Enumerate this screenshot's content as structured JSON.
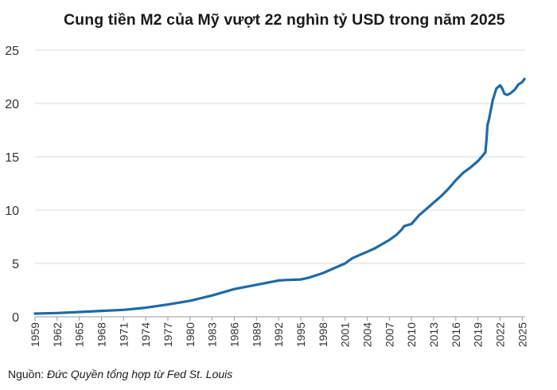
{
  "chart_data": {
    "type": "line",
    "title": "Cung tiền M2 của Mỹ vượt 22 nghìn tỷ USD trong năm 2025",
    "xlabel": "",
    "ylabel": "",
    "ylim": [
      0,
      25
    ],
    "xlim": [
      1959,
      2025.4
    ],
    "y_ticks": [
      "0",
      "5",
      "10",
      "15",
      "20",
      "25"
    ],
    "x_ticks": [
      "1959",
      "1962",
      "1965",
      "1968",
      "1971",
      "1974",
      "1977",
      "1980",
      "1983",
      "1986",
      "1989",
      "1992",
      "1995",
      "1998",
      "2001",
      "2004",
      "2007",
      "2010",
      "2013",
      "2016",
      "2019",
      "2022",
      "2025"
    ],
    "grid": "horizontal",
    "legend": "none",
    "line_color": "#1f6aa5",
    "series": [
      {
        "x": [
          1959,
          1962,
          1965,
          1968,
          1971,
          1974,
          1977,
          1980,
          1983,
          1986,
          1989,
          1992,
          1993,
          1995,
          1996,
          1998,
          2000,
          2001,
          2002,
          2003,
          2004,
          2005,
          2006,
          2007,
          2008,
          2008.7,
          2009,
          2010,
          2011,
          2012,
          2013,
          2014,
          2015,
          2016,
          2017,
          2018,
          2019,
          2020,
          2020.15,
          2020.3,
          2020.5,
          2021,
          2021.5,
          2022,
          2022.3,
          2022.6,
          2023,
          2023.5,
          2024,
          2024.5,
          2025,
          2025.3
        ],
        "y": [
          0.3,
          0.35,
          0.45,
          0.55,
          0.65,
          0.85,
          1.15,
          1.5,
          2.0,
          2.6,
          3.0,
          3.4,
          3.45,
          3.5,
          3.65,
          4.1,
          4.7,
          5.0,
          5.5,
          5.8,
          6.1,
          6.4,
          6.8,
          7.2,
          7.7,
          8.2,
          8.5,
          8.7,
          9.5,
          10.1,
          10.7,
          11.3,
          12.0,
          12.8,
          13.5,
          14.0,
          14.6,
          15.4,
          16.5,
          18.0,
          18.5,
          20.3,
          21.4,
          21.7,
          21.4,
          20.9,
          20.8,
          21.0,
          21.3,
          21.8,
          22.0,
          22.3
        ]
      }
    ]
  },
  "source": {
    "label": "Nguồn: ",
    "text": "Đức Quyền tổng hợp từ Fed St. Louis"
  }
}
